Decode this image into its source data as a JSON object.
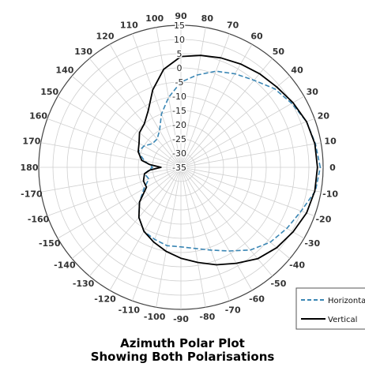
{
  "chart_data": {
    "type": "polar-line",
    "title": [
      "Azimuth Polar Plot",
      "Showing Both Polarisations"
    ],
    "radial_axis": {
      "min": -35,
      "max": 15,
      "step": 5,
      "tick_labels": [
        "-35",
        "-30",
        "-25",
        "-20",
        "-15",
        "-10",
        "-5",
        "0",
        "5",
        "10",
        "15"
      ]
    },
    "angular_axis": {
      "zero_direction": "right",
      "direction": "counterclockwise",
      "step": 10,
      "tick_labels": [
        "0",
        "10",
        "20",
        "30",
        "40",
        "50",
        "60",
        "70",
        "80",
        "90",
        "100",
        "110",
        "120",
        "130",
        "140",
        "150",
        "160",
        "170",
        "180",
        "-170",
        "-160",
        "-150",
        "-140",
        "-130",
        "-120",
        "-110",
        "-100",
        "-90",
        "-80",
        "-70",
        "-60",
        "-50",
        "-40",
        "-30",
        "-20",
        "-10"
      ]
    },
    "grid": true,
    "legend": {
      "position": "bottom-right"
    },
    "series": [
      {
        "name": "Horizontal",
        "style": "dashed",
        "color": "#3a86b4",
        "angles": [
          0,
          10,
          20,
          30,
          40,
          50,
          60,
          70,
          80,
          90,
          100,
          110,
          120,
          130,
          140,
          150,
          160,
          170,
          180,
          190,
          200,
          210,
          220,
          230,
          240,
          250,
          260,
          270,
          280,
          290,
          300,
          310,
          320,
          330,
          340,
          350
        ],
        "values": [
          14,
          13,
          12,
          10,
          8,
          5,
          3,
          1,
          -2,
          -5,
          -10,
          -15,
          -20,
          -22,
          -22,
          -20,
          -19,
          -22,
          -25,
          -22,
          -23,
          -20,
          -16,
          -12,
          -9,
          -8,
          -7,
          -7,
          -6,
          -4,
          -1,
          3,
          6,
          8,
          10,
          13
        ]
      },
      {
        "name": "Vertical",
        "style": "solid",
        "color": "#000000",
        "angles": [
          0,
          10,
          20,
          30,
          40,
          50,
          60,
          70,
          80,
          90,
          100,
          110,
          120,
          130,
          140,
          150,
          160,
          170,
          175,
          180,
          185,
          190,
          200,
          210,
          220,
          230,
          240,
          250,
          260,
          270,
          280,
          290,
          300,
          310,
          320,
          330,
          340,
          350
        ],
        "values": [
          13,
          12.8,
          12,
          10.5,
          9,
          8,
          7,
          6,
          5,
          4,
          0,
          -6,
          -12,
          -15,
          -16,
          -18,
          -19,
          -21,
          -24,
          -28,
          -24,
          -22,
          -21,
          -21,
          -16,
          -12,
          -9,
          -7,
          -5,
          -3,
          -1,
          1.5,
          4,
          7,
          9,
          10.5,
          12,
          12.8
        ]
      }
    ]
  },
  "legend": {
    "horizontal_label": "Horizonta",
    "vertical_label": "Vertical"
  }
}
